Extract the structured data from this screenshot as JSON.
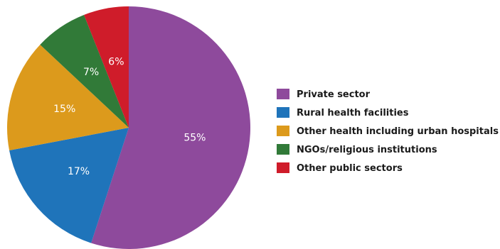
{
  "chart_data": {
    "type": "pie",
    "categories": [
      "Private sector",
      "Rural health facilities",
      "Other health including urban hospitals",
      "NGOs/religious institutions",
      "Other public sectors"
    ],
    "values": [
      55,
      17,
      15,
      7,
      6
    ],
    "value_labels": [
      "55%",
      "17%",
      "15%",
      "7%",
      "6%"
    ],
    "colors": [
      "#8e4a9c",
      "#1f74ba",
      "#dc9a1c",
      "#317a38",
      "#cf1c2a"
    ],
    "start_angle": "12 o'clock",
    "direction": "clockwise",
    "legend_position": "right",
    "title": ""
  }
}
